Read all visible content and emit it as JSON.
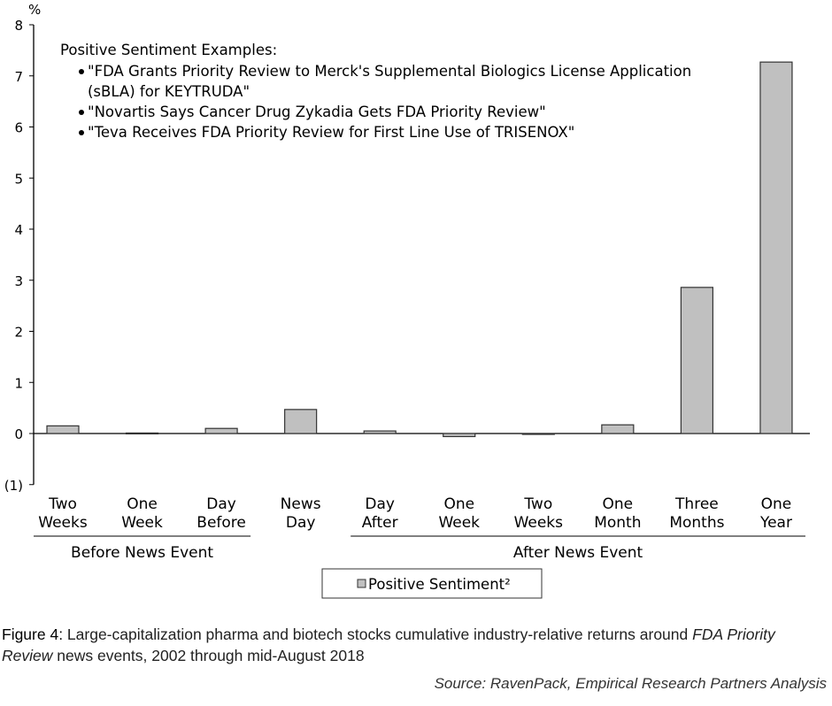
{
  "chart_data": {
    "type": "bar",
    "unit_label": "%",
    "categories": [
      [
        "Two",
        "Weeks"
      ],
      [
        "One",
        "Week"
      ],
      [
        "Day",
        "Before"
      ],
      [
        "News",
        "Day"
      ],
      [
        "Day",
        "After"
      ],
      [
        "One",
        "Week"
      ],
      [
        "Two",
        "Weeks"
      ],
      [
        "One",
        "Month"
      ],
      [
        "Three",
        "Months"
      ],
      [
        "One",
        "Year"
      ]
    ],
    "category_groups": [
      {
        "label": "Before News Event",
        "categories": [
          0,
          1,
          2
        ]
      },
      {
        "label": "After News Event",
        "categories": [
          4,
          5,
          6,
          7,
          8,
          9
        ]
      }
    ],
    "series": [
      {
        "name": "Positive Sentiment²",
        "color": "#c0c0c0",
        "values": [
          0.15,
          0.01,
          0.1,
          0.47,
          0.05,
          -0.06,
          0.0,
          0.17,
          2.86,
          7.27
        ]
      }
    ],
    "ylim": [
      -1,
      8
    ],
    "yticks": [
      -1,
      0,
      1,
      2,
      3,
      4,
      5,
      6,
      7,
      8
    ],
    "ytick_labels": [
      "(1)",
      "0",
      "1",
      "2",
      "3",
      "4",
      "5",
      "6",
      "7",
      "8"
    ],
    "grid": false,
    "legend_position": "bottom",
    "annotation": {
      "title": "Positive Sentiment Examples:",
      "items": [
        [
          "\"FDA Grants Priority Review to Merck's Supplemental Biologics License Application",
          "(sBLA) for KEYTRUDA\""
        ],
        [
          "\"Novartis Says Cancer Drug Zykadia Gets FDA Priority Review\""
        ],
        [
          "\"Teva Receives FDA Priority Review for First Line Use of TRISENOX\""
        ]
      ]
    }
  },
  "caption": {
    "label": "Figure 4:",
    "text1": " Large-capitalization pharma and biotech stocks cumulative industry-relative returns around ",
    "italic": "FDA Priority Review",
    "text2": " news events, 2002 through mid-August 2018"
  },
  "source": "Source: RavenPack, Empirical Research Partners Analysis"
}
